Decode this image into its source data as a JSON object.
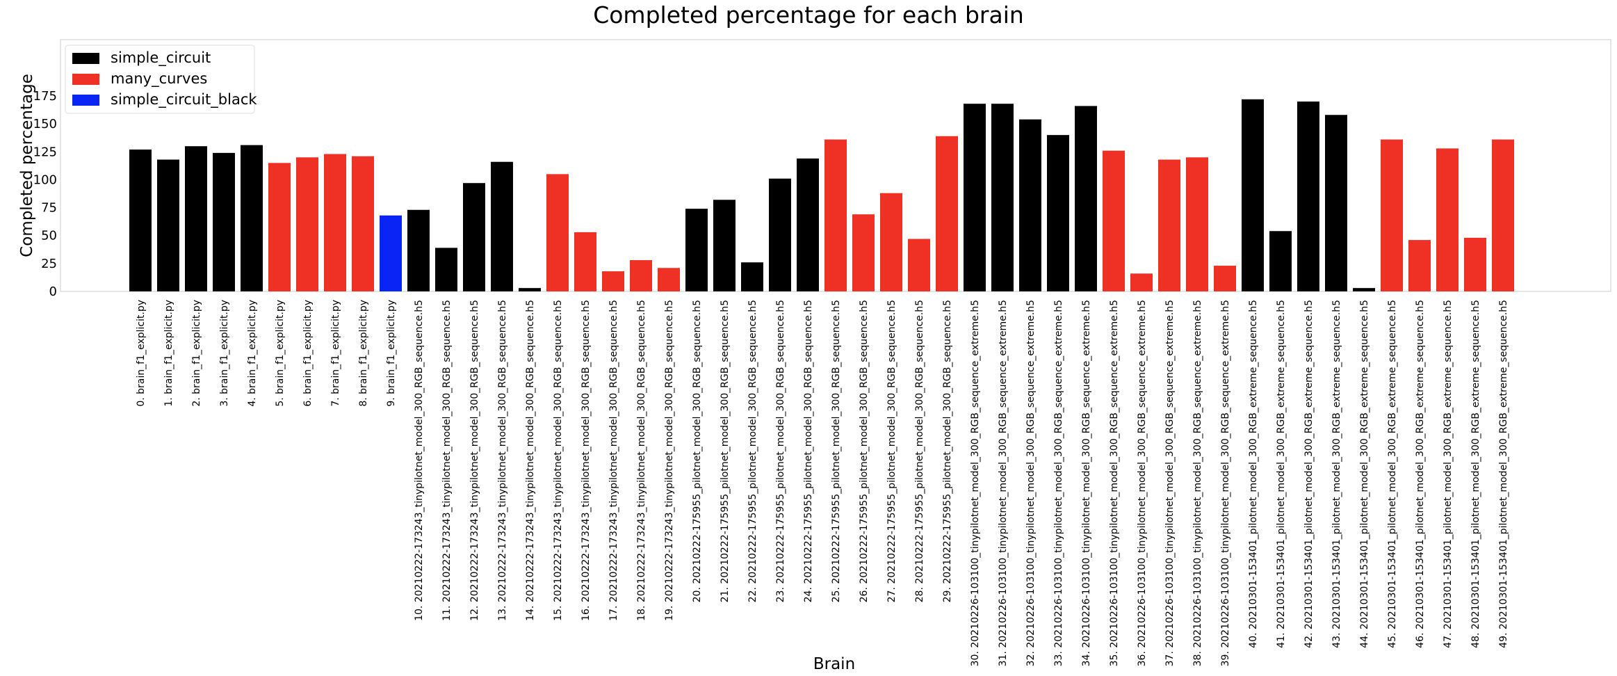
{
  "chart_data": {
    "type": "bar",
    "title": "Completed percentage for each brain",
    "xlabel": "Brain",
    "ylabel": "Completed percentage",
    "ylim": [
      0,
      180
    ],
    "yticks": [
      0,
      25,
      50,
      75,
      100,
      125,
      150,
      175
    ],
    "grid": false,
    "legend_position": "top-left",
    "legend": [
      {
        "name": "simple_circuit",
        "color": "#000000"
      },
      {
        "name": "many_curves",
        "color": "#ee3124"
      },
      {
        "name": "simple_circuit_black",
        "color": "#0a24f5"
      }
    ],
    "categories": [
      "0. brain_f1_explicit.py",
      "1. brain_f1_explicit.py",
      "2. brain_f1_explicit.py",
      "3. brain_f1_explicit.py",
      "4. brain_f1_explicit.py",
      "5. brain_f1_explicit.py",
      "6. brain_f1_explicit.py",
      "7. brain_f1_explicit.py",
      "8. brain_f1_explicit.py",
      "9. brain_f1_explicit.py",
      "10. 20210222-173243_tinypilotnet_model_300_RGB_sequence.h5",
      "11. 20210222-173243_tinypilotnet_model_300_RGB_sequence.h5",
      "12. 20210222-173243_tinypilotnet_model_300_RGB_sequence.h5",
      "13. 20210222-173243_tinypilotnet_model_300_RGB_sequence.h5",
      "14. 20210222-173243_tinypilotnet_model_300_RGB_sequence.h5",
      "15. 20210222-173243_tinypilotnet_model_300_RGB_sequence.h5",
      "16. 20210222-173243_tinypilotnet_model_300_RGB_sequence.h5",
      "17. 20210222-173243_tinypilotnet_model_300_RGB_sequence.h5",
      "18. 20210222-173243_tinypilotnet_model_300_RGB_sequence.h5",
      "19. 20210222-173243_tinypilotnet_model_300_RGB_sequence.h5",
      "20. 20210222-175955_pilotnet_model_300_RGB_sequence.h5",
      "21. 20210222-175955_pilotnet_model_300_RGB_sequence.h5",
      "22. 20210222-175955_pilotnet_model_300_RGB_sequence.h5",
      "23. 20210222-175955_pilotnet_model_300_RGB_sequence.h5",
      "24. 20210222-175955_pilotnet_model_300_RGB_sequence.h5",
      "25. 20210222-175955_pilotnet_model_300_RGB_sequence.h5",
      "26. 20210222-175955_pilotnet_model_300_RGB_sequence.h5",
      "27. 20210222-175955_pilotnet_model_300_RGB_sequence.h5",
      "28. 20210222-175955_pilotnet_model_300_RGB_sequence.h5",
      "29. 20210222-175955_pilotnet_model_300_RGB_sequence.h5",
      "30. 20210226-103100_tinypilotnet_model_300_RGB_sequence_extreme.h5",
      "31. 20210226-103100_tinypilotnet_model_300_RGB_sequence_extreme.h5",
      "32. 20210226-103100_tinypilotnet_model_300_RGB_sequence_extreme.h5",
      "33. 20210226-103100_tinypilotnet_model_300_RGB_sequence_extreme.h5",
      "34. 20210226-103100_tinypilotnet_model_300_RGB_sequence_extreme.h5",
      "35. 20210226-103100_tinypilotnet_model_300_RGB_sequence_extreme.h5",
      "36. 20210226-103100_tinypilotnet_model_300_RGB_sequence_extreme.h5",
      "37. 20210226-103100_tinypilotnet_model_300_RGB_sequence_extreme.h5",
      "38. 20210226-103100_tinypilotnet_model_300_RGB_sequence_extreme.h5",
      "39. 20210226-103100_tinypilotnet_model_300_RGB_sequence_extreme.h5",
      "40. 20210301-153401_pilotnet_model_300_RGB_extreme_sequence.h5",
      "41. 20210301-153401_pilotnet_model_300_RGB_extreme_sequence.h5",
      "42. 20210301-153401_pilotnet_model_300_RGB_extreme_sequence.h5",
      "43. 20210301-153401_pilotnet_model_300_RGB_extreme_sequence.h5",
      "44. 20210301-153401_pilotnet_model_300_RGB_extreme_sequence.h5",
      "45. 20210301-153401_pilotnet_model_300_RGB_extreme_sequence.h5",
      "46. 20210301-153401_pilotnet_model_300_RGB_extreme_sequence.h5",
      "47. 20210301-153401_pilotnet_model_300_RGB_extreme_sequence.h5",
      "48. 20210301-153401_pilotnet_model_300_RGB_extreme_sequence.h5",
      "49. 20210301-153401_pilotnet_model_300_RGB_extreme_sequence.h5"
    ],
    "values": [
      127,
      118,
      130,
      124,
      131,
      115,
      120,
      123,
      121,
      68,
      73,
      39,
      97,
      116,
      3,
      105,
      53,
      18,
      28,
      21,
      74,
      82,
      26,
      101,
      119,
      136,
      69,
      88,
      47,
      139,
      168,
      168,
      154,
      140,
      166,
      126,
      16,
      118,
      120,
      23,
      172,
      54,
      170,
      158,
      3,
      136,
      46,
      128,
      48,
      136
    ],
    "series_index": [
      0,
      0,
      0,
      0,
      0,
      1,
      1,
      1,
      1,
      2,
      0,
      0,
      0,
      0,
      0,
      1,
      1,
      1,
      1,
      1,
      0,
      0,
      0,
      0,
      0,
      1,
      1,
      1,
      1,
      1,
      0,
      0,
      0,
      0,
      0,
      1,
      1,
      1,
      1,
      1,
      0,
      0,
      0,
      0,
      0,
      1,
      1,
      1,
      1,
      1
    ]
  }
}
